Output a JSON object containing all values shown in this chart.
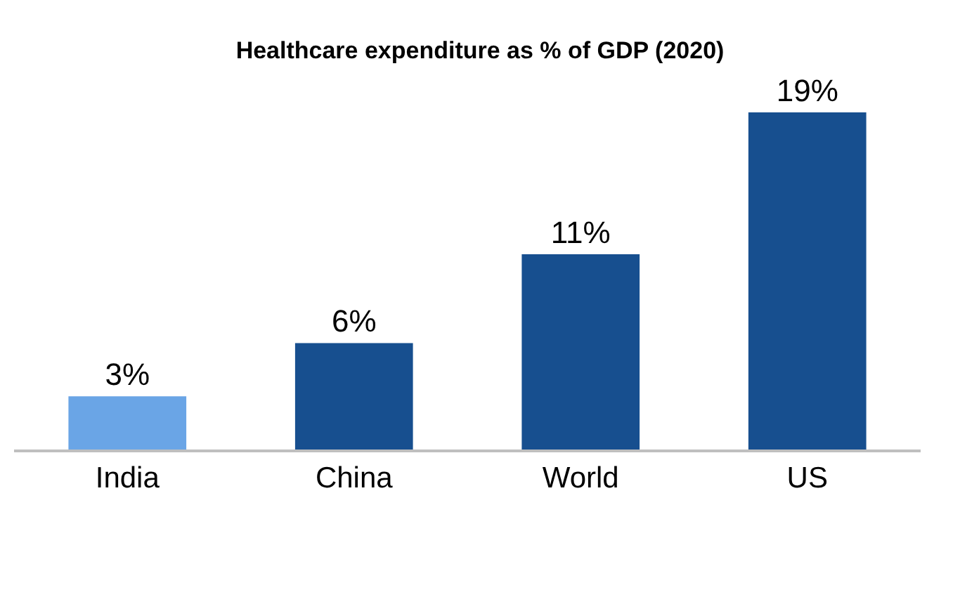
{
  "chart_data": {
    "type": "bar",
    "title": "Healthcare expenditure as % of GDP (2020)",
    "categories": [
      "India",
      "China",
      "World",
      "US"
    ],
    "values": [
      3,
      6,
      11,
      19
    ],
    "colors": [
      "#6aa5e6",
      "#174f8f",
      "#174f8f",
      "#174f8f"
    ],
    "value_labels": [
      "3%",
      "6%",
      "11%",
      "19%"
    ]
  }
}
